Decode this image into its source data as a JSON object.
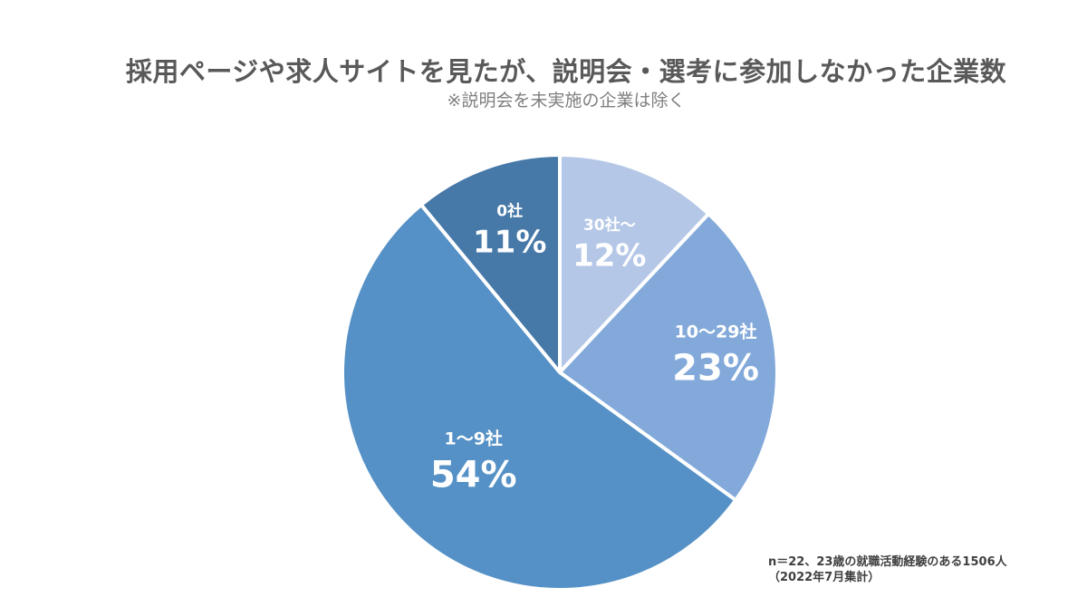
{
  "header": {
    "title": "採用ページや求人サイトを見たが、説明会・選考に参加しなかった企業数",
    "subtitle": "※説明会を未実施の企業は除く"
  },
  "chart_data": {
    "type": "pie",
    "title": "採用ページや求人サイトを見たが、説明会・選考に参加しなかった企業数",
    "subtitle": "※説明会を未実施の企業は除く",
    "start_angle_deg": 0,
    "direction": "clockwise",
    "slices": [
      {
        "label": "30社～",
        "value": 12,
        "value_label": "12%",
        "color": "#b4c7e7"
      },
      {
        "label": "10～29社",
        "value": 23,
        "value_label": "23%",
        "color": "#82a9da"
      },
      {
        "label": "1～9社",
        "value": 54,
        "value_label": "54%",
        "color": "#5591c6"
      },
      {
        "label": "0社",
        "value": 11,
        "value_label": "11%",
        "color": "#4678a8"
      }
    ],
    "legend": "none"
  },
  "footnote": {
    "line1": "n＝22、23歳の就職活動経験のある1506人",
    "line2": "（2022年7月集計）"
  }
}
